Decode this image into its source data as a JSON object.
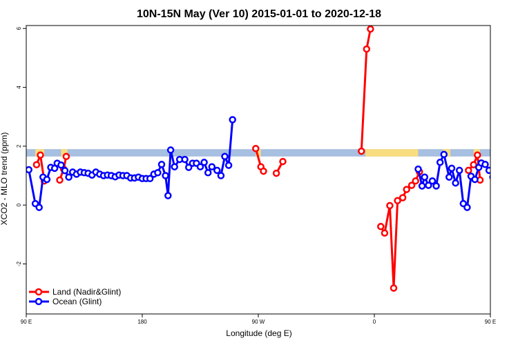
{
  "chart_data": {
    "type": "line",
    "title": "10N-15N May (Ver 10)   2015-01-01 to 2020-12-18",
    "xlabel": "Longitude (deg E)",
    "ylabel": "XCO2 - MLO trend (ppm)",
    "xlim": [
      90,
      450
    ],
    "ylim": [
      -3.7,
      6.1
    ],
    "x_ticks": [
      {
        "value": 90,
        "label": "90 E"
      },
      {
        "value": 180,
        "label": "180"
      },
      {
        "value": 270,
        "label": "90 W"
      },
      {
        "value": 360,
        "label": "0"
      },
      {
        "value": 450,
        "label": "90 E"
      },
      {
        "value": 540,
        "label": "180"
      }
    ],
    "y_ticks": [
      {
        "value": -2,
        "label": "-2"
      },
      {
        "value": 0,
        "label": "0"
      },
      {
        "value": 2,
        "label": "2"
      },
      {
        "value": 4,
        "label": "4"
      },
      {
        "value": 6,
        "label": "6"
      }
    ],
    "land_ocean_bar": {
      "ymin": 1.65,
      "ymax": 1.9,
      "ocean_color": "#a7bfe0",
      "land_color": "#f8dd80",
      "land_segments": [
        [
          97,
          104
        ],
        [
          117,
          122
        ],
        [
          268,
          272
        ],
        [
          353,
          394
        ],
        [
          413,
          419
        ],
        [
          437,
          442
        ],
        [
          463,
          471
        ],
        [
          483,
          488
        ]
      ]
    },
    "series": [
      {
        "name": "Land (Nadir&Glint)",
        "color": "#ff0000",
        "segments": [
          [
            [
              98,
              1.37
            ],
            [
              101,
              1.7
            ],
            [
              104,
              0.82
            ]
          ],
          [
            [
              116,
              0.85
            ],
            [
              119,
              1.22
            ],
            [
              121,
              1.65
            ]
          ],
          [
            [
              268,
              1.92
            ],
            [
              272,
              1.3
            ],
            [
              274,
              1.15
            ]
          ],
          [
            [
              284,
              1.08
            ],
            [
              289,
              1.48
            ]
          ],
          [
            [
              350,
              1.83
            ],
            [
              354,
              5.3
            ],
            [
              357,
              5.98
            ]
          ],
          [
            [
              365,
              -0.73
            ],
            [
              368,
              -0.95
            ],
            [
              372,
              -0.02
            ],
            [
              375,
              -2.82
            ],
            [
              378,
              0.15
            ],
            [
              382,
              0.25
            ],
            [
              385,
              0.53
            ],
            [
              389,
              0.67
            ],
            [
              392,
              0.82
            ],
            [
              395,
              1.13
            ]
          ],
          [
            [
              433,
              1.18
            ],
            [
              437,
              1.37
            ],
            [
              440,
              1.7
            ],
            [
              442,
              0.85
            ]
          ],
          [
            [
              455,
              0.85
            ],
            [
              457,
              1.25
            ],
            [
              459,
              1.67
            ]
          ]
        ]
      },
      {
        "name": "Ocean (Glint)",
        "color": "#0000ff",
        "segments": [
          [
            [
              92,
              1.2
            ],
            [
              97,
              0.05
            ],
            [
              100,
              -0.08
            ],
            [
              103,
              0.95
            ],
            [
              106,
              0.87
            ],
            [
              109,
              1.28
            ],
            [
              112,
              1.25
            ],
            [
              114,
              1.42
            ],
            [
              117,
              1.36
            ],
            [
              120,
              1.17
            ],
            [
              123,
              0.95
            ],
            [
              126,
              1.12
            ],
            [
              129,
              1.05
            ],
            [
              132,
              1.12
            ],
            [
              135,
              1.1
            ],
            [
              138,
              1.08
            ],
            [
              141,
              1.02
            ],
            [
              144,
              1.12
            ],
            [
              147,
              1.05
            ],
            [
              150,
              1.0
            ],
            [
              153,
              1.02
            ],
            [
              156,
              1.0
            ],
            [
              159,
              0.96
            ],
            [
              162,
              1.02
            ],
            [
              165,
              1.0
            ],
            [
              168,
              1.0
            ],
            [
              171,
              0.92
            ],
            [
              174,
              0.92
            ],
            [
              177,
              0.95
            ],
            [
              180,
              0.9
            ],
            [
              183,
              0.9
            ],
            [
              186,
              0.9
            ],
            [
              189,
              1.05
            ],
            [
              192,
              1.1
            ],
            [
              195,
              1.38
            ],
            [
              198,
              1.0
            ],
            [
              200,
              0.32
            ],
            [
              202,
              1.87
            ],
            [
              205,
              1.3
            ],
            [
              209,
              1.55
            ],
            [
              213,
              1.55
            ],
            [
              216,
              1.28
            ],
            [
              219,
              1.42
            ],
            [
              222,
              1.42
            ],
            [
              225,
              1.3
            ],
            [
              228,
              1.45
            ],
            [
              231,
              1.1
            ],
            [
              234,
              1.3
            ],
            [
              238,
              1.18
            ],
            [
              241,
              1.0
            ],
            [
              244,
              1.65
            ],
            [
              247,
              1.35
            ],
            [
              250,
              2.9
            ]
          ],
          [
            [
              394,
              1.22
            ],
            [
              397,
              0.65
            ],
            [
              399,
              0.95
            ],
            [
              402,
              0.67
            ],
            [
              405,
              0.82
            ],
            [
              408,
              0.65
            ],
            [
              411,
              1.45
            ],
            [
              414,
              1.72
            ],
            [
              418,
              0.95
            ],
            [
              420,
              1.25
            ],
            [
              423,
              0.75
            ],
            [
              426,
              1.18
            ],
            [
              429,
              0.05
            ],
            [
              432,
              -0.08
            ],
            [
              435,
              0.98
            ],
            [
              438,
              0.87
            ],
            [
              441,
              1.28
            ],
            [
              443,
              1.43
            ],
            [
              446,
              1.38
            ],
            [
              449,
              1.18
            ],
            [
              452,
              0.95
            ],
            [
              455,
              1.12
            ],
            [
              458,
              1.05
            ],
            [
              461,
              1.12
            ],
            [
              464,
              1.1
            ],
            [
              467,
              1.08
            ],
            [
              470,
              1.02
            ],
            [
              473,
              1.12
            ],
            [
              476,
              1.05
            ]
          ]
        ]
      }
    ],
    "legend": {
      "position": "bottom-left",
      "entries": [
        "Land (Nadir&Glint)",
        "Ocean (Glint)"
      ]
    }
  }
}
